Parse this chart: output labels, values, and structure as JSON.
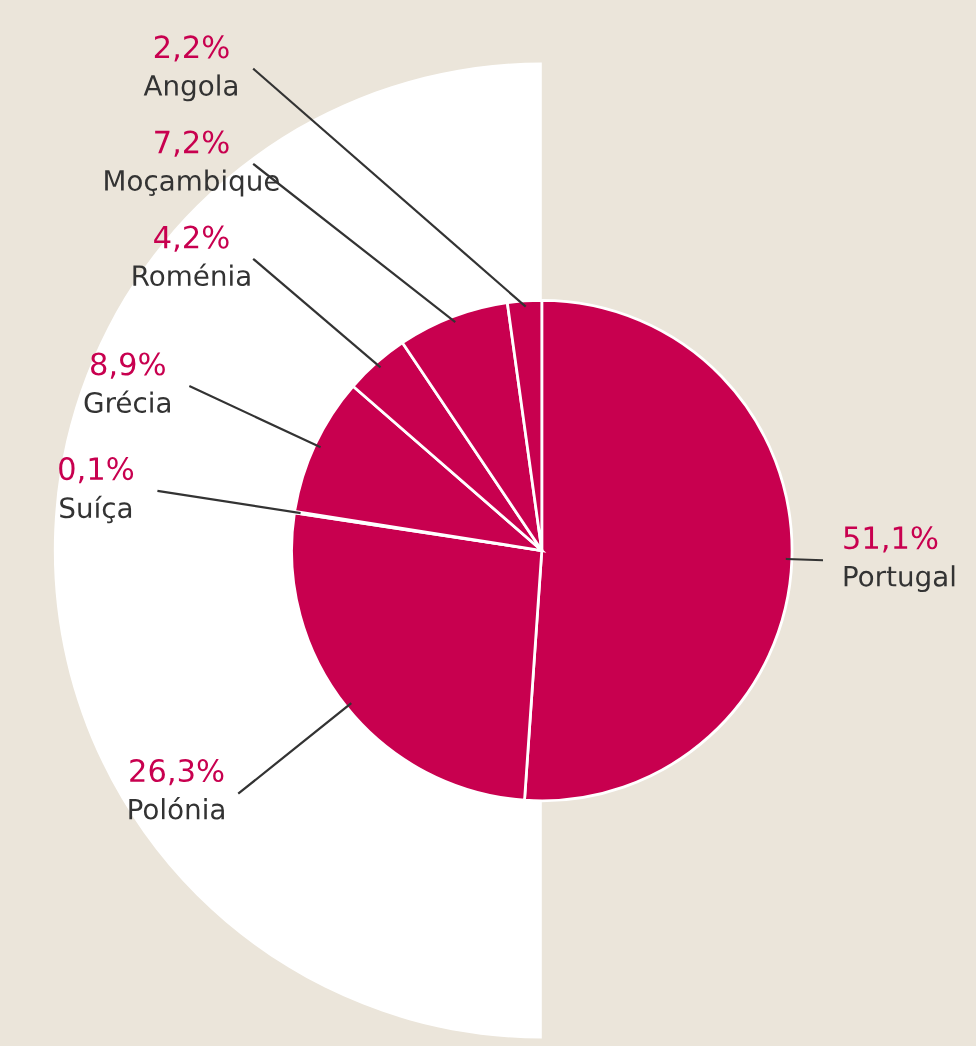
{
  "chart_data": {
    "type": "pie",
    "categories": [
      "Portugal",
      "Polónia",
      "Suíça",
      "Grécia",
      "Roménia",
      "Moçambique",
      "Angola"
    ],
    "values": [
      51.1,
      26.3,
      0.1,
      8.9,
      4.2,
      7.2,
      2.2
    ],
    "value_labels": [
      "51,1%",
      "26,3%",
      "0,1%",
      "8,9%",
      "4,2%",
      "7,2%",
      "2,2%"
    ],
    "colors": [
      "#c8004f",
      "#c8004f",
      "#c8004f",
      "#c8004f",
      "#c8004f",
      "#c8004f",
      "#c8004f"
    ],
    "legend": false
  }
}
